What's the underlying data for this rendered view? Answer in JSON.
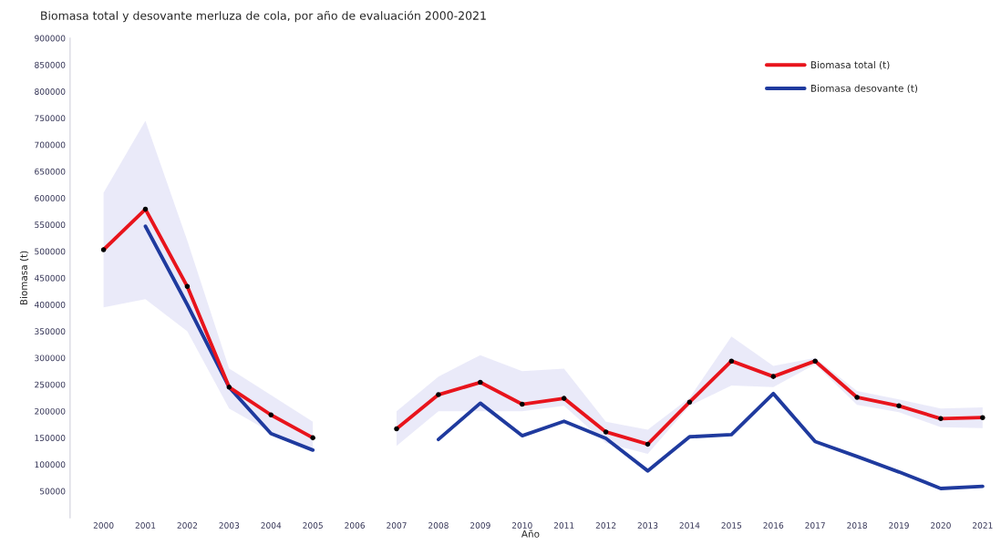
{
  "chart_data": {
    "type": "line",
    "title": "Biomasa total y desovante merluza de cola, por año de evaluación 2000-2021",
    "xlabel": "Año",
    "ylabel": "Biomasa (t)",
    "categories": [
      "2000",
      "2001",
      "2002",
      "2003",
      "2004",
      "2005",
      "2006",
      "2007",
      "2008",
      "2009",
      "2010",
      "2011",
      "2012",
      "2013",
      "2014",
      "2015",
      "2016",
      "2017",
      "2018",
      "2019",
      "2020",
      "2021"
    ],
    "series": [
      {
        "name": "Biomasa total (t)",
        "color": "#e8141c",
        "marker": "circle",
        "values": [
          503000,
          579000,
          434000,
          245000,
          193000,
          150000,
          null,
          167000,
          231000,
          254000,
          213000,
          224000,
          161000,
          138000,
          217000,
          294000,
          265000,
          294000,
          226000,
          210000,
          186000,
          188000
        ],
        "lower": [
          395000,
          410000,
          350000,
          205000,
          160000,
          125000,
          null,
          135000,
          200000,
          200000,
          200000,
          210000,
          140000,
          120000,
          210000,
          248000,
          245000,
          288000,
          212000,
          198000,
          170000,
          168000
        ],
        "upper": [
          610000,
          745000,
          520000,
          280000,
          230000,
          180000,
          null,
          200000,
          265000,
          305000,
          275000,
          280000,
          180000,
          165000,
          225000,
          340000,
          285000,
          300000,
          238000,
          222000,
          205000,
          207000
        ]
      },
      {
        "name": "Biomasa desovante (t)",
        "color": "#1f3a9e",
        "values": [
          null,
          547000,
          400000,
          245000,
          158000,
          127000,
          null,
          null,
          147000,
          215000,
          154000,
          181000,
          149000,
          88000,
          152000,
          156000,
          233000,
          143000,
          115000,
          86000,
          55000,
          59000
        ]
      }
    ],
    "ylim": [
      0,
      900000
    ],
    "yticks": [
      50000,
      100000,
      150000,
      200000,
      250000,
      300000,
      350000,
      400000,
      450000,
      500000,
      550000,
      600000,
      650000,
      700000,
      750000,
      800000,
      850000,
      900000
    ],
    "legend": "top right",
    "grid": false
  }
}
